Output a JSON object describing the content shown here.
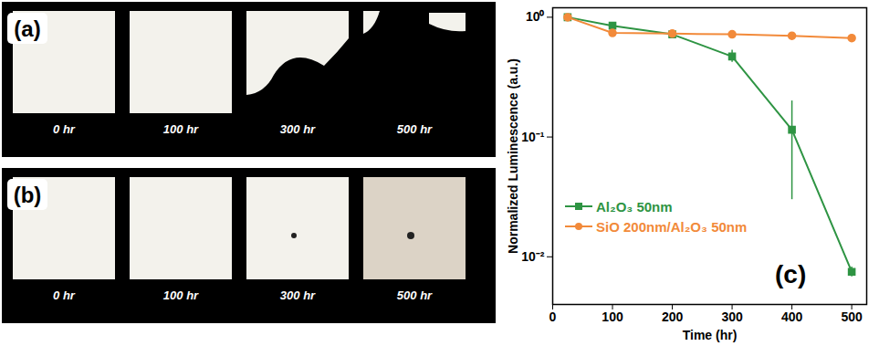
{
  "chart_data": {
    "type": "line",
    "x_label": "Time (hr)",
    "y_label": "Normalized Luminescence (a.u.)",
    "x": [
      25,
      100,
      200,
      300,
      400,
      500
    ],
    "series": [
      {
        "name": "Al₂O₃ 50nm",
        "color": "#2e9443",
        "marker": "square",
        "values": [
          1.0,
          0.85,
          0.72,
          0.47,
          0.115,
          0.0075
        ],
        "lower": [
          null,
          null,
          null,
          0.42,
          0.03,
          0.0068
        ],
        "upper": [
          null,
          null,
          null,
          0.53,
          0.2,
          0.0082
        ]
      },
      {
        "name": "SiO 200nm/Al₂O₃ 50nm",
        "color": "#f28a3a",
        "marker": "circle",
        "values": [
          1.0,
          0.74,
          0.73,
          0.72,
          0.7,
          0.67
        ]
      }
    ],
    "xlim": [
      0,
      525
    ],
    "xticks": [
      0,
      100,
      200,
      300,
      400,
      500
    ],
    "log": "y",
    "ylim": [
      0.004,
      1.2
    ],
    "yticks": [
      {
        "value": 0.01,
        "label": "10⁻²"
      },
      {
        "value": 0.1,
        "label": "10⁻¹"
      },
      {
        "value": 1,
        "label": "10⁰"
      }
    ],
    "grid": false,
    "legend": "lower left",
    "annotations": [
      "(c)"
    ]
  },
  "photos": [
    {
      "label": "(a)",
      "times": [
        "0 hr",
        "100 hr",
        "300 hr",
        "500 hr"
      ]
    },
    {
      "label": "(b)",
      "times": [
        "0 hr",
        "100 hr",
        "300 hr",
        "500 hr"
      ]
    }
  ]
}
